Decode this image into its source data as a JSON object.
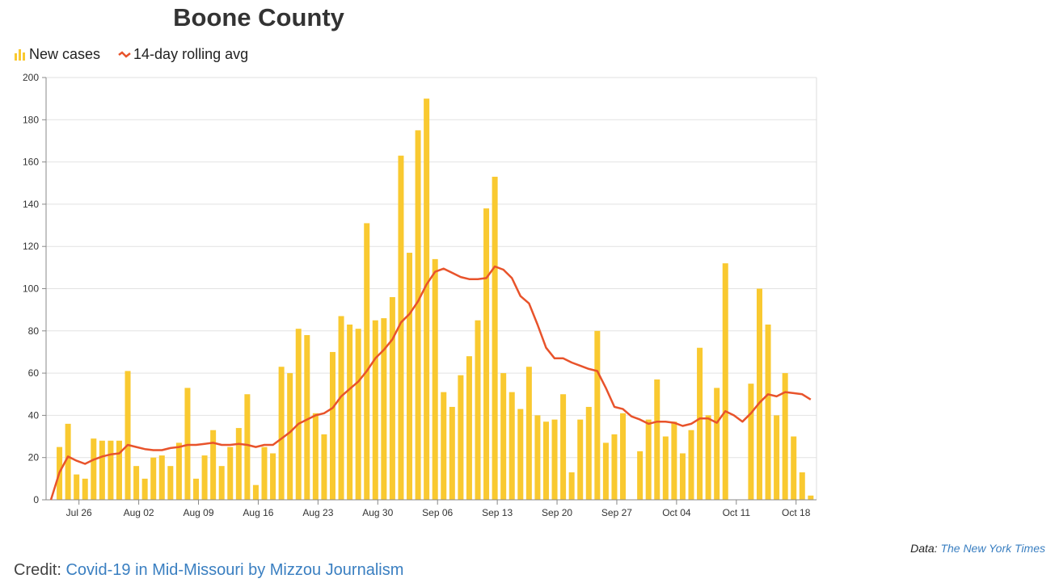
{
  "chart_data": {
    "type": "bar",
    "title": "Boone County",
    "ylim": [
      0,
      200
    ],
    "yticks": [
      0,
      20,
      40,
      60,
      80,
      100,
      120,
      140,
      160,
      180,
      200
    ],
    "grid": true,
    "legend_position": "top-left",
    "x": [
      "Jul 23",
      "Jul 24",
      "Jul 25",
      "Jul 26",
      "Jul 27",
      "Jul 28",
      "Jul 29",
      "Jul 30",
      "Jul 31",
      "Aug 01",
      "Aug 02",
      "Aug 03",
      "Aug 04",
      "Aug 05",
      "Aug 06",
      "Aug 07",
      "Aug 08",
      "Aug 09",
      "Aug 10",
      "Aug 11",
      "Aug 12",
      "Aug 13",
      "Aug 14",
      "Aug 15",
      "Aug 16",
      "Aug 17",
      "Aug 18",
      "Aug 19",
      "Aug 20",
      "Aug 21",
      "Aug 22",
      "Aug 23",
      "Aug 24",
      "Aug 25",
      "Aug 26",
      "Aug 27",
      "Aug 28",
      "Aug 29",
      "Aug 30",
      "Aug 31",
      "Sep 01",
      "Sep 02",
      "Sep 03",
      "Sep 04",
      "Sep 05",
      "Sep 06",
      "Sep 07",
      "Sep 08",
      "Sep 09",
      "Sep 10",
      "Sep 11",
      "Sep 12",
      "Sep 13",
      "Sep 14",
      "Sep 15",
      "Sep 16",
      "Sep 17",
      "Sep 18",
      "Sep 19",
      "Sep 20",
      "Sep 21",
      "Sep 22",
      "Sep 23",
      "Sep 24",
      "Sep 25",
      "Sep 26",
      "Sep 27",
      "Sep 28",
      "Sep 29",
      "Sep 30",
      "Oct 01",
      "Oct 02",
      "Oct 03",
      "Oct 04",
      "Oct 05",
      "Oct 06",
      "Oct 07",
      "Oct 08",
      "Oct 09",
      "Oct 10",
      "Oct 11",
      "Oct 12",
      "Oct 13",
      "Oct 14",
      "Oct 15",
      "Oct 16",
      "Oct 17",
      "Oct 18",
      "Oct 19",
      "Oct 20"
    ],
    "xticks": [
      "Jul 26",
      "Aug 02",
      "Aug 09",
      "Aug 16",
      "Aug 23",
      "Aug 30",
      "Sep 06",
      "Sep 13",
      "Sep 20",
      "Sep 27",
      "Oct 04",
      "Oct 11",
      "Oct 18"
    ],
    "series": [
      {
        "name": "New cases",
        "type": "bar",
        "color": "#f9c930",
        "values": [
          0,
          25,
          36,
          12,
          10,
          29,
          28,
          28,
          28,
          61,
          16,
          10,
          20,
          21,
          16,
          27,
          53,
          10,
          21,
          33,
          16,
          25,
          34,
          50,
          7,
          25,
          22,
          63,
          60,
          81,
          78,
          41,
          31,
          70,
          87,
          83,
          81,
          131,
          85,
          86,
          96,
          163,
          117,
          175,
          190,
          114,
          51,
          44,
          59,
          68,
          85,
          138,
          153,
          60,
          51,
          43,
          63,
          40,
          37,
          38,
          50,
          13,
          38,
          44,
          80,
          27,
          31,
          41,
          0,
          23,
          38,
          57,
          30,
          37,
          22,
          33,
          72,
          40,
          53,
          112,
          0,
          0,
          55,
          100,
          83,
          40,
          60,
          30,
          13,
          2
        ]
      },
      {
        "name": "14-day rolling avg",
        "type": "line",
        "color": "#e8532b",
        "values": [
          0,
          13,
          20.5,
          18.5,
          17,
          19,
          20.5,
          21.5,
          22,
          26,
          25,
          24,
          23.5,
          23.5,
          24.5,
          25,
          26,
          26,
          26.5,
          27,
          26,
          26,
          26.5,
          26,
          25,
          26,
          26,
          29,
          32,
          36,
          38,
          40,
          41,
          43.5,
          49,
          52.5,
          56,
          61,
          67,
          71,
          76,
          84,
          88,
          94,
          102,
          108,
          109.5,
          107.5,
          105.5,
          104.5,
          104.5,
          105,
          110.5,
          109,
          105,
          96.5,
          93,
          83,
          72,
          67,
          67,
          65,
          63.5,
          62,
          61,
          53,
          44,
          43,
          39.5,
          38,
          36,
          37,
          37,
          36.5,
          35,
          36,
          38.5,
          38.5,
          36.5,
          42,
          40,
          37,
          41,
          46,
          50,
          49,
          51,
          50.5,
          50,
          47.5
        ]
      }
    ]
  },
  "legend": {
    "bars_label": "New cases",
    "line_label": "14-day rolling avg"
  },
  "source": {
    "prefix": "Data:",
    "link": "The New York Times"
  },
  "credit": {
    "prefix": "Credit:",
    "link": "Covid-19 in Mid-Missouri by Mizzou Journalism"
  }
}
